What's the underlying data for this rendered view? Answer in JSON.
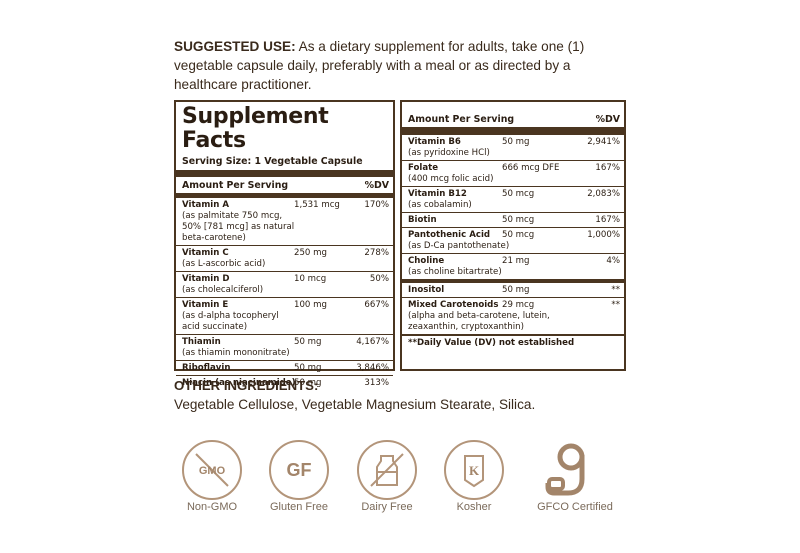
{
  "suggested_use": {
    "heading": "SUGGESTED USE:",
    "text": " As a dietary supplement for adults, take one (1) vegetable capsule daily, preferably with a meal or as directed by a healthcare practitioner."
  },
  "panel": {
    "title": "Supplement Facts",
    "serving_size": "Serving Size: 1 Vegetable Capsule",
    "header_amount": "Amount Per Serving",
    "header_dv": "%DV",
    "left_rows": [
      {
        "name": "Vitamin A",
        "amount": "1,531 mcg",
        "dv": "170%",
        "sub": "(as palmitate 750 mcg,\n50% [781 mcg] as natural\nbeta-carotene)"
      },
      {
        "name": "Vitamin C",
        "amount": "250 mg",
        "dv": "278%",
        "sub": "(as L-ascorbic acid)"
      },
      {
        "name": "Vitamin D",
        "amount": "10 mcg",
        "dv": "50%",
        "sub": "(as cholecalciferol)"
      },
      {
        "name": "Vitamin E",
        "amount": "100 mg",
        "dv": "667%",
        "sub": "(as d-alpha tocopheryl\nacid succinate)"
      },
      {
        "name": "Thiamin",
        "amount": "50 mg",
        "dv": "4,167%",
        "sub": "(as thiamin mononitrate)"
      },
      {
        "name": "Riboflavin",
        "amount": "50 mg",
        "dv": "3,846%",
        "sub": ""
      },
      {
        "name": "Niacin (as niacinamide)",
        "amount": "50 mg",
        "dv": "313%",
        "sub": ""
      }
    ],
    "right_rows": [
      {
        "name": "Vitamin B6",
        "amount": "50 mg",
        "dv": "2,941%",
        "sub": "(as pyridoxine HCl)"
      },
      {
        "name": "Folate",
        "amount": "666 mcg DFE",
        "dv": "167%",
        "sub": "(400 mcg folic acid)"
      },
      {
        "name": "Vitamin B12",
        "amount": "50 mcg",
        "dv": "2,083%",
        "sub": "(as cobalamin)"
      },
      {
        "name": "Biotin",
        "amount": "50 mcg",
        "dv": "167%",
        "sub": ""
      },
      {
        "name": "Pantothenic Acid",
        "amount": "50 mcg",
        "dv": "1,000%",
        "sub": "(as D-Ca pantothenate)"
      },
      {
        "name": "Choline",
        "amount": "21 mg",
        "dv": "4%",
        "sub": "(as choline bitartrate)"
      },
      {
        "name": "Inositol",
        "amount": "50 mg",
        "dv": "**",
        "sub": ""
      },
      {
        "name": "Mixed Carotenoids",
        "amount": "29 mcg",
        "dv": "**",
        "sub": "(alpha and beta-carotene, lutein,\nzeaxanthin, cryptoxanthin)"
      }
    ],
    "footnote": "**Daily Value (DV) not established"
  },
  "other_ingredients": {
    "heading": "OTHER INGREDIENTS:",
    "text": "Vegetable Cellulose, Vegetable Magnesium Stearate, Silica."
  },
  "badges": [
    {
      "icon": "non-gmo-icon",
      "icon_text": "GMO",
      "label": "Non-GMO"
    },
    {
      "icon": "gluten-free-icon",
      "icon_text": "GF",
      "label": "Gluten Free"
    },
    {
      "icon": "dairy-free-icon",
      "icon_text": "",
      "label": "Dairy Free"
    },
    {
      "icon": "kosher-icon",
      "icon_text": "K",
      "label": "Kosher"
    },
    {
      "icon": "gfco-icon",
      "icon_text": "",
      "label": "GFCO Certified"
    }
  ],
  "colors": {
    "brown": "#4a3520",
    "badge": "#b3957a",
    "text": "#3a2a1c"
  }
}
